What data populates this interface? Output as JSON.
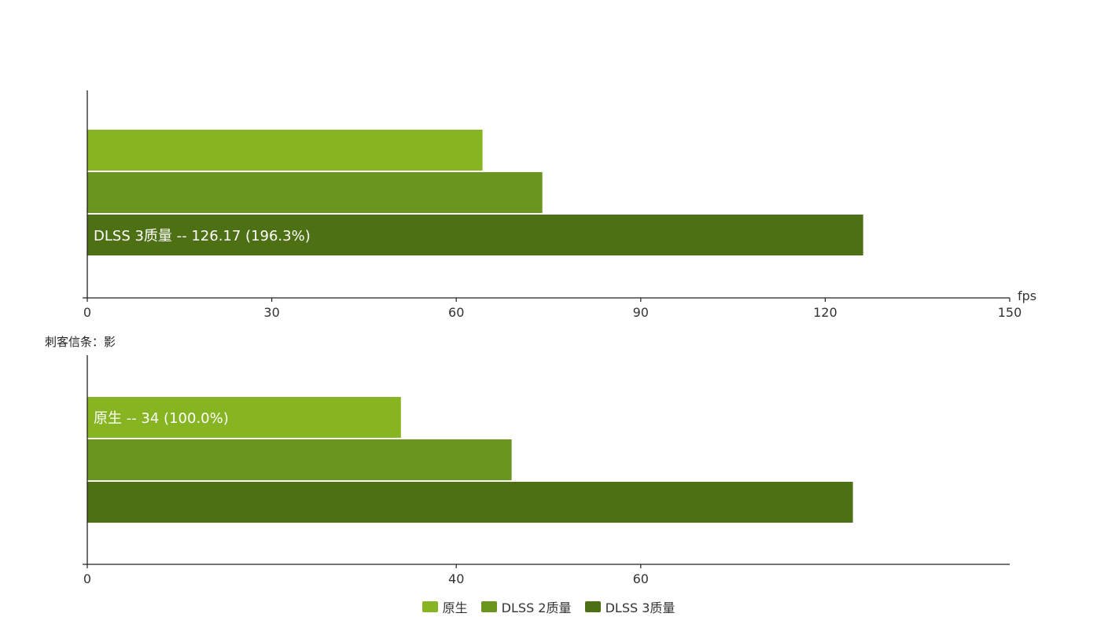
{
  "colors": {
    "native": "#86b521",
    "dlss2": "#6a961f",
    "dlss3": "#4e7015",
    "axis": "#222222",
    "bar_label_text": "#ffffff"
  },
  "legend": [
    {
      "name": "原生",
      "color": "#86b521"
    },
    {
      "name": "DLSS 2质量",
      "color": "#6a961f"
    },
    {
      "name": "DLSS 3质量",
      "color": "#4e7015"
    }
  ],
  "chart_data": [
    {
      "type": "bar",
      "orientation": "horizontal",
      "title": "",
      "xlabel": "fps",
      "xlim": [
        0,
        150
      ],
      "xticks": [
        0,
        30,
        60,
        90,
        120,
        150
      ],
      "series": [
        {
          "name": "原生",
          "value": 64.27
        },
        {
          "name": "DLSS 2质量",
          "value": 74
        },
        {
          "name": "DLSS 3质量",
          "value": 126.17
        }
      ],
      "annotations": [
        {
          "series": "DLSS 3质量",
          "text": "DLSS 3质量  --  126.17 (196.3%)"
        }
      ]
    },
    {
      "type": "bar",
      "orientation": "horizontal",
      "title": "刺客信条：影",
      "xlabel": "",
      "xlim": [
        0,
        100
      ],
      "xticks": [
        0,
        40,
        60
      ],
      "series": [
        {
          "name": "原生",
          "value": 34
        },
        {
          "name": "DLSS 2质量",
          "value": 46
        },
        {
          "name": "DLSS 3质量",
          "value": 83
        }
      ],
      "annotations": [
        {
          "series": "原生",
          "text": "原生  --  34 (100.0%)"
        }
      ]
    }
  ]
}
